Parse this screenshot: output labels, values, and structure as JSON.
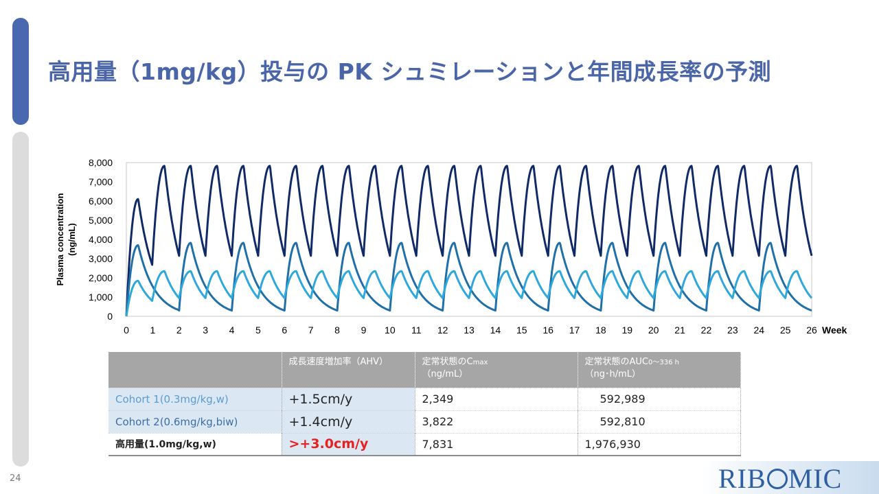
{
  "slide": {
    "title": "高用量（1mg/kg）投与の PK シュミレーションと年間成長率の予測",
    "page_number": "24",
    "logo_text_left": "RIB",
    "logo_text_right": "MIC",
    "colors": {
      "title": "#4a66a8",
      "accent": "#4a68b0",
      "highlight": "#e8201e"
    }
  },
  "chart_data": {
    "type": "line",
    "ylabel": "Plasma concentration (ng/mL)",
    "ylabel_line1": "Plasma concentration",
    "ylabel_line2": "(ng/mL)",
    "xlabel": "Week",
    "xlim": [
      0,
      26
    ],
    "ylim": [
      0,
      8000
    ],
    "yticks": [
      "0",
      "1,000",
      "2,000",
      "3,000",
      "4,000",
      "5,000",
      "6,000",
      "7,000",
      "8,000"
    ],
    "xticks": [
      "0",
      "1",
      "2",
      "3",
      "4",
      "5",
      "6",
      "7",
      "8",
      "9",
      "10",
      "11",
      "12",
      "13",
      "14",
      "15",
      "16",
      "17",
      "18",
      "19",
      "20",
      "21",
      "22",
      "23",
      "24",
      "25",
      "26"
    ],
    "grid": false,
    "series": [
      {
        "color": "#0f2a66",
        "dose_interval_weeks": 1,
        "first_peak": 6100,
        "first_trough": 2600,
        "steady_peak": 7831,
        "steady_trough": 3150
      },
      {
        "color": "#1f6fa8",
        "dose_interval_weeks": 2,
        "first_peak": 3700,
        "first_trough": 320,
        "steady_peak": 3822,
        "steady_trough": 300
      },
      {
        "color": "#2ea7db",
        "dose_interval_weeks": 1,
        "first_peak": 1850,
        "first_trough": 780,
        "steady_peak": 2349,
        "steady_trough": 950
      }
    ]
  },
  "table": {
    "headers": {
      "col1": "",
      "col2": "成長速度増加率（AHV）",
      "col3_line1": "定常状態のC",
      "col3_sub": "max",
      "col3_line2": "（ng/mL）",
      "col4_line1": "定常状態のAUC",
      "col4_sub": "0～336 h",
      "col4_line2": "（ng･h/mL）"
    },
    "rows": [
      {
        "name": "Cohort 1(0.3mg/kg,w)",
        "ahv": "+1.5cm/y",
        "cmax": "2,349",
        "auc": "592,989",
        "name_color": "#5b9bd5"
      },
      {
        "name": "Cohort 2(0.6mg/kg,biw)",
        "ahv": "+1.4cm/y",
        "cmax": "3,822",
        "auc": "592,810",
        "name_color": "#3a6ea8"
      },
      {
        "name": "高用量(1.0mg/kg,w)",
        "ahv": ">+3.0cm/y",
        "cmax": "7,831",
        "auc": "1,976,930",
        "name_color": "#222222"
      }
    ]
  }
}
